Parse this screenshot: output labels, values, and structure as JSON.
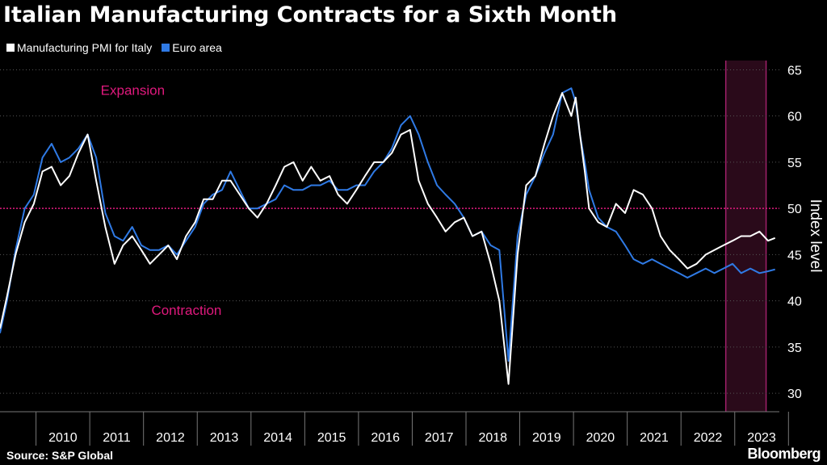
{
  "title": "Italian Manufacturing Contracts for a Sixth Month",
  "source": "Source: S&P Global",
  "brand": "Bloomberg",
  "colors": {
    "italy": "#ffffff",
    "euro": "#2f7ae5",
    "threshold": "#e0197d",
    "highlight": "#2a0a1a",
    "highlight_border": "#a0206a"
  },
  "chart_data": {
    "type": "line",
    "title": "Italian Manufacturing Contracts for a Sixth Month",
    "xlabel": "",
    "ylabel": "Index level",
    "ylim": [
      28,
      66
    ],
    "xlim": [
      2009.33,
      2023.83
    ],
    "yticks": [
      30,
      35,
      40,
      45,
      50,
      55,
      60,
      65
    ],
    "xticks": [
      "2010",
      "2011",
      "2012",
      "2013",
      "2014",
      "2015",
      "2016",
      "2017",
      "2018",
      "2019",
      "2020",
      "2021",
      "2022",
      "2023"
    ],
    "grid": true,
    "legend_position": "top-left",
    "reference_line": {
      "y": 50
    },
    "highlight_period": {
      "start": "2022-11",
      "end": "2023-07"
    },
    "annotations": [
      {
        "text": "Expansion",
        "x": 2011.8,
        "y": 62.3
      },
      {
        "text": "Contraction",
        "x": 2012.8,
        "y": 38.5
      }
    ],
    "series": [
      {
        "name": "Manufacturing PMI for Italy",
        "x": [
          2009.33,
          2009.46,
          2009.62,
          2009.79,
          2009.96,
          2010.12,
          2010.29,
          2010.46,
          2010.62,
          2010.79,
          2010.96,
          2011.12,
          2011.29,
          2011.46,
          2011.62,
          2011.79,
          2011.96,
          2012.12,
          2012.29,
          2012.46,
          2012.62,
          2012.79,
          2012.96,
          2013.12,
          2013.29,
          2013.46,
          2013.62,
          2013.79,
          2013.96,
          2014.12,
          2014.29,
          2014.46,
          2014.62,
          2014.79,
          2014.96,
          2015.12,
          2015.29,
          2015.46,
          2015.62,
          2015.79,
          2015.96,
          2016.12,
          2016.29,
          2016.46,
          2016.62,
          2016.79,
          2016.96,
          2017.12,
          2017.29,
          2017.46,
          2017.62,
          2017.79,
          2017.96,
          2018.12,
          2018.29,
          2018.46,
          2018.62,
          2018.79,
          2018.96,
          2019.12,
          2019.29,
          2019.46,
          2019.62,
          2019.79,
          2019.96,
          2020.04,
          2020.12,
          2020.21,
          2020.29,
          2020.46,
          2020.62,
          2020.79,
          2020.96,
          2021.12,
          2021.29,
          2021.46,
          2021.62,
          2021.79,
          2021.96,
          2022.12,
          2022.29,
          2022.46,
          2022.62,
          2022.79,
          2022.96,
          2023.12,
          2023.29,
          2023.46,
          2023.62,
          2023.75
        ],
        "values": [
          37.0,
          40.5,
          45.0,
          48.5,
          50.5,
          54.0,
          54.5,
          52.5,
          53.5,
          56.0,
          58.0,
          53.0,
          48.0,
          44.0,
          46.0,
          47.0,
          45.5,
          44.0,
          45.0,
          46.0,
          44.5,
          47.0,
          48.5,
          51.0,
          51.0,
          53.0,
          53.0,
          51.5,
          50.0,
          49.0,
          50.5,
          52.5,
          54.5,
          55.0,
          53.0,
          54.5,
          53.0,
          53.5,
          51.5,
          50.5,
          52.0,
          53.5,
          55.0,
          55.0,
          56.0,
          58.0,
          58.5,
          53.0,
          50.5,
          49.0,
          47.5,
          48.5,
          49.0,
          47.0,
          47.5,
          44.0,
          40.0,
          31.0,
          45.0,
          52.5,
          53.5,
          57.0,
          60.0,
          62.5,
          60.0,
          62.0,
          58.0,
          54.0,
          50.0,
          48.5,
          48.0,
          50.5,
          49.5,
          52.0,
          51.5,
          50.0,
          47.0,
          45.5,
          44.5,
          43.5,
          44.0,
          45.0,
          45.5,
          46.0,
          46.5,
          47.0,
          47.0,
          47.5,
          46.5,
          46.8
        ]
      },
      {
        "name": "Euro area",
        "x": [
          2009.33,
          2009.46,
          2009.62,
          2009.79,
          2009.96,
          2010.12,
          2010.29,
          2010.46,
          2010.62,
          2010.79,
          2010.96,
          2011.12,
          2011.29,
          2011.46,
          2011.62,
          2011.79,
          2011.96,
          2012.12,
          2012.29,
          2012.46,
          2012.62,
          2012.79,
          2012.96,
          2013.12,
          2013.29,
          2013.46,
          2013.62,
          2013.79,
          2013.96,
          2014.12,
          2014.29,
          2014.46,
          2014.62,
          2014.79,
          2014.96,
          2015.12,
          2015.29,
          2015.46,
          2015.62,
          2015.79,
          2015.96,
          2016.12,
          2016.29,
          2016.46,
          2016.62,
          2016.79,
          2016.96,
          2017.12,
          2017.29,
          2017.46,
          2017.62,
          2017.79,
          2017.96,
          2018.12,
          2018.29,
          2018.46,
          2018.62,
          2018.79,
          2018.96,
          2019.12,
          2019.29,
          2019.46,
          2019.62,
          2019.79,
          2019.96,
          2020.04,
          2020.12,
          2020.21,
          2020.29,
          2020.46,
          2020.62,
          2020.79,
          2020.96,
          2021.12,
          2021.29,
          2021.46,
          2021.62,
          2021.79,
          2021.96,
          2022.12,
          2022.29,
          2022.46,
          2022.62,
          2022.79,
          2022.96,
          2023.12,
          2023.29,
          2023.46,
          2023.62,
          2023.75
        ],
        "values": [
          36.5,
          40.0,
          45.5,
          50.0,
          51.5,
          55.5,
          57.0,
          55.0,
          55.5,
          56.5,
          58.0,
          55.5,
          49.5,
          47.0,
          46.5,
          48.0,
          46.0,
          45.5,
          45.5,
          46.0,
          45.0,
          46.5,
          48.0,
          50.5,
          51.5,
          52.0,
          54.0,
          52.0,
          50.0,
          50.0,
          50.5,
          51.0,
          52.5,
          52.0,
          52.0,
          52.5,
          52.5,
          53.0,
          52.0,
          52.0,
          52.5,
          52.5,
          54.0,
          55.0,
          56.5,
          59.0,
          60.0,
          58.0,
          55.0,
          52.5,
          51.5,
          50.5,
          49.0,
          47.0,
          47.5,
          46.0,
          45.5,
          33.5,
          47.0,
          51.5,
          53.5,
          56.0,
          58.0,
          62.5,
          63.0,
          61.5,
          58.0,
          55.0,
          52.0,
          49.0,
          48.0,
          47.5,
          46.0,
          44.5,
          44.0,
          44.5,
          44.0,
          43.5,
          43.0,
          42.5,
          43.0,
          43.5,
          43.0,
          43.5,
          44.0,
          43.0,
          43.5,
          43.0,
          43.2,
          43.4
        ]
      }
    ]
  }
}
